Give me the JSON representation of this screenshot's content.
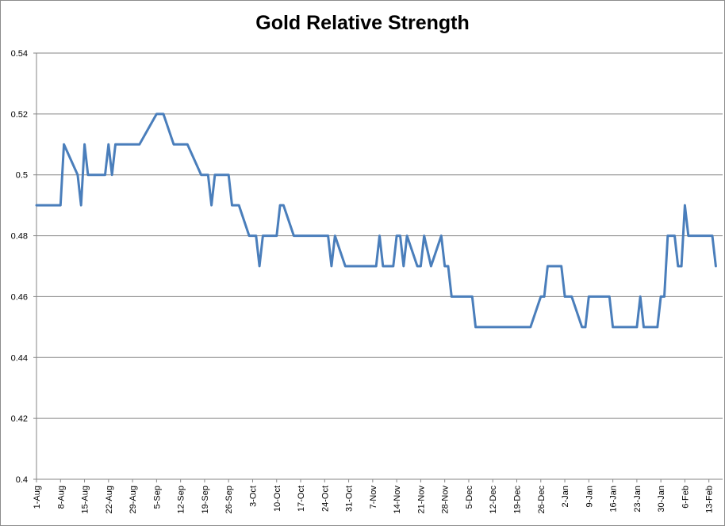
{
  "chart_data": {
    "type": "line",
    "title": "Gold Relative Strength",
    "xlabel": "",
    "ylabel": "",
    "ylim": [
      0.4,
      0.54
    ],
    "y_ticks": [
      "0.4",
      "0.42",
      "0.44",
      "0.46",
      "0.48",
      "0.5",
      "0.52",
      "0.54"
    ],
    "x_ticks": [
      "1-Aug",
      "8-Aug",
      "15-Aug",
      "22-Aug",
      "29-Aug",
      "5-Sep",
      "12-Sep",
      "19-Sep",
      "26-Sep",
      "3-Oct",
      "10-Oct",
      "17-Oct",
      "24-Oct",
      "31-Oct",
      "7-Nov",
      "14-Nov",
      "21-Nov",
      "28-Nov",
      "5-Dec",
      "12-Dec",
      "19-Dec",
      "26-Dec",
      "2-Jan",
      "9-Jan",
      "16-Jan",
      "23-Jan",
      "30-Jan",
      "6-Feb",
      "13-Feb"
    ],
    "x_range": [
      "1-Aug",
      "17-Feb"
    ],
    "grid": true,
    "line_color": "#4a7ebb",
    "series": [
      {
        "x": [
          "1-Aug",
          "8-Aug",
          "9-Aug",
          "13-Aug",
          "14-Aug",
          "15-Aug",
          "16-Aug",
          "21-Aug",
          "22-Aug",
          "23-Aug",
          "24-Aug",
          "31-Aug",
          "5-Sep",
          "7-Sep",
          "10-Sep",
          "14-Sep",
          "18-Sep",
          "20-Sep",
          "21-Sep",
          "22-Sep",
          "26-Sep",
          "27-Sep",
          "29-Sep",
          "2-Oct",
          "3-Oct",
          "4-Oct",
          "5-Oct",
          "6-Oct",
          "7-Oct",
          "10-Oct",
          "11-Oct",
          "12-Oct",
          "15-Oct",
          "25-Oct",
          "26-Oct",
          "27-Oct",
          "30-Oct",
          "8-Nov",
          "9-Nov",
          "10-Nov",
          "13-Nov",
          "14-Nov",
          "15-Nov",
          "16-Nov",
          "17-Nov",
          "20-Nov",
          "21-Nov",
          "22-Nov",
          "24-Nov",
          "27-Nov",
          "28-Nov",
          "29-Nov",
          "30-Nov",
          "6-Dec",
          "7-Dec",
          "21-Dec",
          "23-Dec",
          "26-Dec",
          "27-Dec",
          "28-Dec",
          "1-Jan",
          "2-Jan",
          "3-Jan",
          "4-Jan",
          "7-Jan",
          "8-Jan",
          "9-Jan",
          "10-Jan",
          "15-Jan",
          "16-Jan",
          "17-Jan",
          "23-Jan",
          "24-Jan",
          "25-Jan",
          "28-Jan",
          "29-Jan",
          "30-Jan",
          "31-Jan",
          "1-Feb",
          "3-Feb",
          "4-Feb",
          "5-Feb",
          "6-Feb",
          "7-Feb",
          "8-Feb",
          "11-Feb",
          "13-Feb",
          "14-Feb",
          "15-Feb"
        ],
        "values": [
          0.49,
          0.49,
          0.51,
          0.5,
          0.49,
          0.51,
          0.5,
          0.5,
          0.51,
          0.5,
          0.51,
          0.51,
          0.52,
          0.52,
          0.51,
          0.51,
          0.5,
          0.5,
          0.49,
          0.5,
          0.5,
          0.49,
          0.49,
          0.48,
          0.48,
          0.48,
          0.47,
          0.48,
          0.48,
          0.48,
          0.49,
          0.49,
          0.48,
          0.48,
          0.47,
          0.48,
          0.47,
          0.47,
          0.48,
          0.47,
          0.47,
          0.48,
          0.48,
          0.47,
          0.48,
          0.47,
          0.47,
          0.48,
          0.47,
          0.48,
          0.47,
          0.47,
          0.46,
          0.46,
          0.45,
          0.45,
          0.45,
          0.46,
          0.46,
          0.47,
          0.47,
          0.46,
          0.46,
          0.46,
          0.45,
          0.45,
          0.46,
          0.46,
          0.46,
          0.45,
          0.45,
          0.45,
          0.46,
          0.45,
          0.45,
          0.45,
          0.46,
          0.46,
          0.48,
          0.48,
          0.47,
          0.47,
          0.49,
          0.48,
          0.48,
          0.48,
          0.48,
          0.48,
          0.47
        ]
      }
    ]
  }
}
